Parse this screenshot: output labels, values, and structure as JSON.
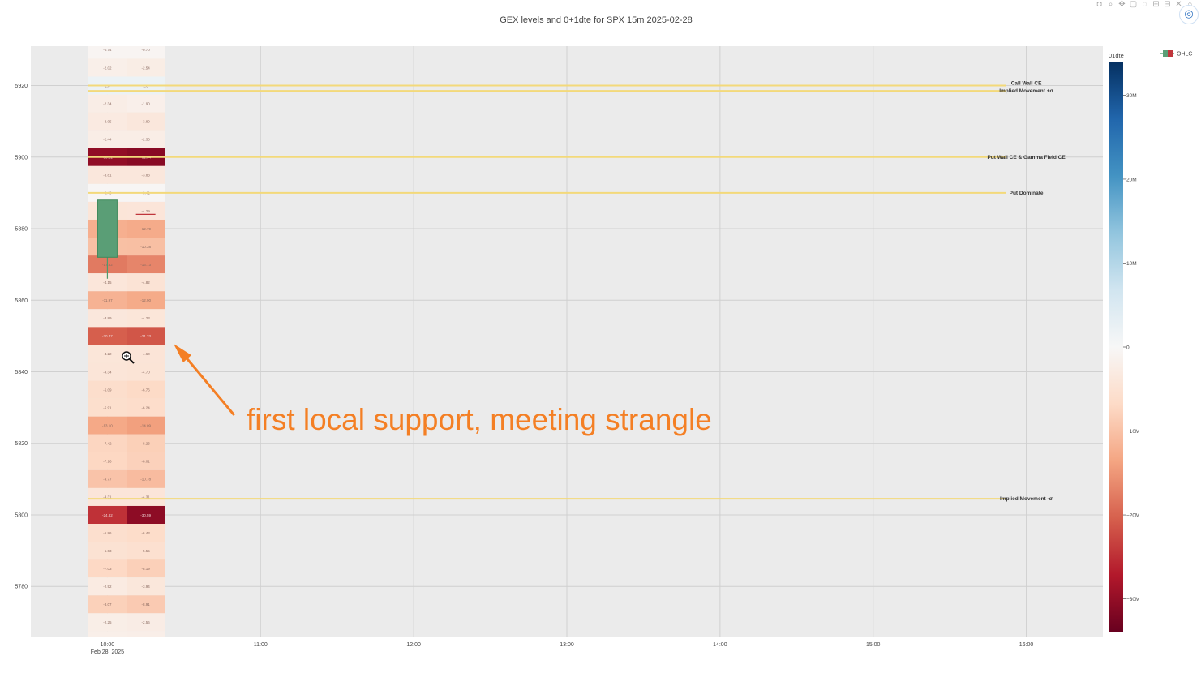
{
  "title": "GEX levels and 0+1dte for SPX 15m 2025-02-28",
  "toolbar": {
    "icons": [
      "camera-icon",
      "zoom-icon",
      "pan-icon",
      "box-select-icon",
      "lasso-icon",
      "zoom-in-icon",
      "zoom-out-icon",
      "autoscale-icon",
      "reset-icon"
    ],
    "glyphs": [
      "◘",
      "⌕",
      "✥",
      "▢",
      "◌",
      "⊞",
      "⊟",
      "✕",
      "⌂"
    ]
  },
  "screen_capture_glyph": "◎",
  "annotation": {
    "text": "first local support, meeting strangle",
    "color": "#f47f24"
  },
  "chart_data": {
    "type": "heatmap",
    "title": "GEX levels and 0+1dte for SPX 15m 2025-02-28",
    "x_ticks": [
      {
        "label": "10:00",
        "sub": "Feb 28, 2025",
        "hour": 10.0
      },
      {
        "label": "11:00",
        "hour": 11.0
      },
      {
        "label": "12:00",
        "hour": 12.0
      },
      {
        "label": "13:00",
        "hour": 13.0
      },
      {
        "label": "14:00",
        "hour": 14.0
      },
      {
        "label": "15:00",
        "hour": 15.0
      },
      {
        "label": "16:00",
        "hour": 16.0
      }
    ],
    "xlim": [
      9.5,
      16.5
    ],
    "ylim": [
      5766,
      5931
    ],
    "y_ticks": [
      5780,
      5800,
      5820,
      5840,
      5860,
      5880,
      5900,
      5920
    ],
    "grid": true,
    "colorbar": {
      "title": "01dte",
      "range": [
        -34,
        34
      ],
      "ticks": [
        {
          "label": "30M",
          "v": 30
        },
        {
          "label": "20M",
          "v": 20
        },
        {
          "label": "10M",
          "v": 10
        },
        {
          "label": "0",
          "v": 0
        },
        {
          "label": "−10M",
          "v": -10
        },
        {
          "label": "−20M",
          "v": -20
        },
        {
          "label": "−30M",
          "v": -30
        }
      ]
    },
    "legend": {
      "position": "top-right",
      "entries": [
        "OHLC"
      ]
    },
    "heatmap_columns": [
      10.0,
      10.25
    ],
    "heatmap_rows": [
      {
        "strike": 5930,
        "values": [
          "-0.74",
          "-0.70"
        ]
      },
      {
        "strike": 5925,
        "values": [
          "-2.02",
          "-2.54"
        ]
      },
      {
        "strike": 5920,
        "values": [
          "2.0",
          "2.0"
        ]
      },
      {
        "strike": 5915,
        "values": [
          "-2.34",
          "-1.90"
        ]
      },
      {
        "strike": 5910,
        "values": [
          "-3.05",
          "-3.80"
        ]
      },
      {
        "strike": 5905,
        "values": [
          "-2.44",
          "-2.36"
        ]
      },
      {
        "strike": 5900,
        "values": [
          "-30.21",
          "-31.04"
        ]
      },
      {
        "strike": 5895,
        "values": [
          "-3.81",
          "-3.83"
        ]
      },
      {
        "strike": 5890,
        "values": [
          "-0.40",
          "-0.41"
        ]
      },
      {
        "strike": 5885,
        "values": [
          "-4.36",
          "-4.29"
        ]
      },
      {
        "strike": 5880,
        "values": [
          "-12.35",
          "-12.79"
        ]
      },
      {
        "strike": 5875,
        "values": [
          "-10.21",
          "-10.38"
        ]
      },
      {
        "strike": 5870,
        "values": [
          "-17.82",
          "-16.73"
        ]
      },
      {
        "strike": 5865,
        "values": [
          "-4.15",
          "-4.82"
        ]
      },
      {
        "strike": 5860,
        "values": [
          "-11.97",
          "-12.90"
        ]
      },
      {
        "strike": 5855,
        "values": [
          "-3.89",
          "-4.23"
        ]
      },
      {
        "strike": 5850,
        "values": [
          "-20.47",
          "-21.33"
        ]
      },
      {
        "strike": 5845,
        "values": [
          "-4.22",
          "-4.60"
        ]
      },
      {
        "strike": 5840,
        "values": [
          "-4.34",
          "-4.70"
        ]
      },
      {
        "strike": 5835,
        "values": [
          "-6.09",
          "-6.76"
        ]
      },
      {
        "strike": 5830,
        "values": [
          "-5.91",
          "-6.24"
        ]
      },
      {
        "strike": 5825,
        "values": [
          "-13.10",
          "-14.09"
        ]
      },
      {
        "strike": 5820,
        "values": [
          "-7.42",
          "-8.23"
        ]
      },
      {
        "strike": 5815,
        "values": [
          "-7.16",
          "-8.01"
        ]
      },
      {
        "strike": 5810,
        "values": [
          "-9.77",
          "-10.78"
        ]
      },
      {
        "strike": 5805,
        "values": [
          "-4.31",
          "-4.31"
        ]
      },
      {
        "strike": 5800,
        "values": [
          "-24.82",
          "-30.59"
        ]
      },
      {
        "strike": 5795,
        "values": [
          "-5.86",
          "-6.43"
        ]
      },
      {
        "strike": 5790,
        "values": [
          "-5.03",
          "-5.55"
        ]
      },
      {
        "strike": 5785,
        "values": [
          "-7.03",
          "-8.19"
        ]
      },
      {
        "strike": 5780,
        "values": [
          "-2.92",
          "-3.94"
        ]
      },
      {
        "strike": 5775,
        "values": [
          "-8.07",
          "-8.91"
        ]
      },
      {
        "strike": 5770,
        "values": [
          "-2.25",
          "-2.56"
        ]
      },
      {
        "strike": 5765,
        "values": [
          "-2.0",
          "-2.1"
        ]
      }
    ],
    "levels": [
      {
        "label": "Call Wall CE",
        "y": 5920
      },
      {
        "label": "Implied Movement +σ",
        "y": 5918.5
      },
      {
        "label": "Put Wall CE & Gamma Field CE",
        "y": 5900
      },
      {
        "label": "Put Dominate",
        "y": 5890
      },
      {
        "label": "Implied Movement -σ",
        "y": 5804.5
      }
    ],
    "ohlc": [
      {
        "x": 10.0,
        "open": 5872,
        "high": 5888,
        "low": 5866,
        "close": 5888
      }
    ],
    "current_price_marker": {
      "x": 10.25,
      "y": 5884
    }
  }
}
